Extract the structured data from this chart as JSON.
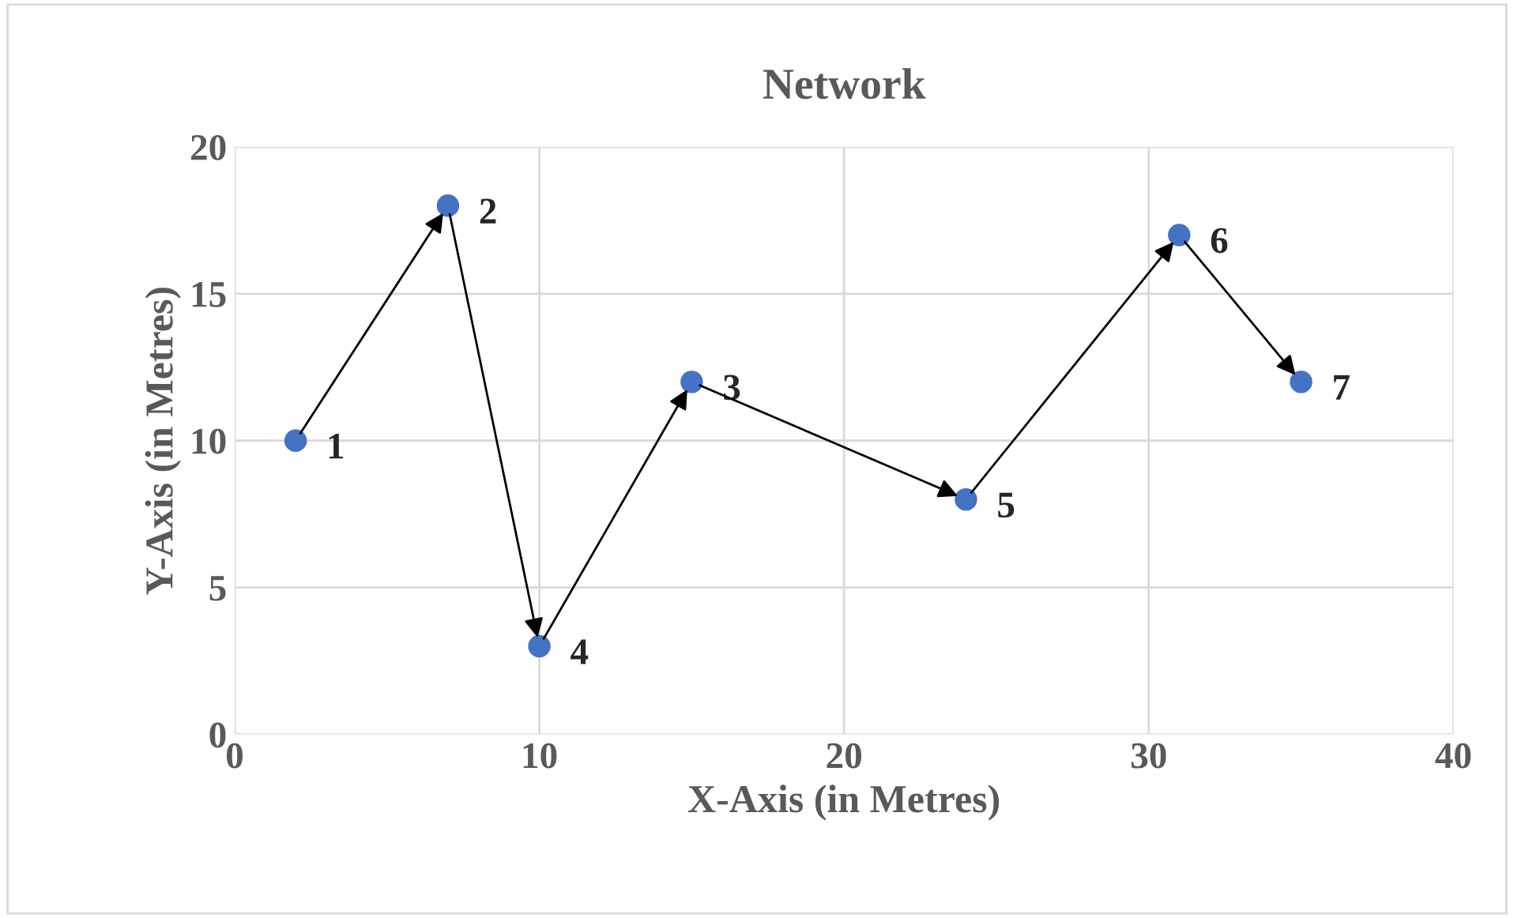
{
  "chart_data": {
    "type": "scatter",
    "title": "Network",
    "xlabel": "X-Axis (in Metres)",
    "ylabel": "Y-Axis (in Metres)",
    "x": [
      2,
      7,
      10,
      15,
      24,
      31,
      35
    ],
    "series": [
      {
        "color": "#4472c4",
        "values": [
          10,
          18,
          3,
          12,
          8,
          17,
          12
        ]
      }
    ],
    "xlim": [
      0,
      40
    ],
    "xticks": [
      0,
      10,
      20,
      30,
      40
    ],
    "ylim": [
      0,
      20
    ],
    "yticks": [
      0,
      5,
      10,
      15,
      20
    ],
    "grid": true,
    "marker": "circle",
    "annotations": [
      {
        "text": "1",
        "x": 2,
        "y": 10
      },
      {
        "text": "2",
        "x": 7,
        "y": 18
      },
      {
        "text": "4",
        "x": 10,
        "y": 3
      },
      {
        "text": "3",
        "x": 15,
        "y": 12
      },
      {
        "text": "5",
        "x": 24,
        "y": 8
      },
      {
        "text": "6",
        "x": 31,
        "y": 17
      },
      {
        "text": "7",
        "x": 35,
        "y": 12
      }
    ]
  }
}
